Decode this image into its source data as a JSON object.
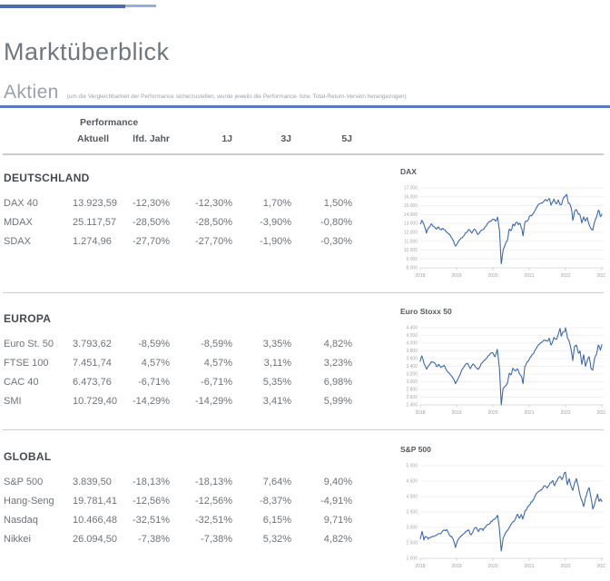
{
  "header": {
    "title": "Marktüberblick",
    "section_title": "Aktien",
    "section_note": "(um die Vergleichbarkeit der Performance sicherzustellen, wurde jeweils die Performance- bzw. Total-Return-Version herangezogen)"
  },
  "colors": {
    "accent_blue": "#5a79bd",
    "top_rule_dark": "#4d6cb3",
    "top_rule_light": "#9aaed9",
    "chart_line": "#3d68b1",
    "divider_gray": "#cccccc"
  },
  "table": {
    "group_label": "Performance",
    "columns": [
      "Aktuell",
      "lfd. Jahr",
      "1J",
      "3J",
      "5J"
    ]
  },
  "sections": [
    {
      "title": "DEUTSCHLAND",
      "rows": [
        {
          "name": "DAX 40",
          "values": [
            "13.923,59",
            "-12,30%",
            "-12,30%",
            "1,70%",
            "1,50%"
          ]
        },
        {
          "name": "MDAX",
          "values": [
            "25.117,57",
            "-28,50%",
            "-28,50%",
            "-3,90%",
            "-0,80%"
          ]
        },
        {
          "name": "SDAX",
          "values": [
            "1.274,96",
            "-27,70%",
            "-27,70%",
            "-1,90%",
            "-0,30%"
          ]
        }
      ]
    },
    {
      "title": "EUROPA",
      "rows": [
        {
          "name": "Euro St. 50",
          "values": [
            "3.793,62",
            "-8,59%",
            "-8,59%",
            "3,35%",
            "4,82%"
          ]
        },
        {
          "name": "FTSE 100",
          "values": [
            "7.451,74",
            "4,57%",
            "4,57%",
            "3,11%",
            "3,23%"
          ]
        },
        {
          "name": "CAC 40",
          "values": [
            "6.473,76",
            "-6,71%",
            "-6,71%",
            "5,35%",
            "6,98%"
          ]
        },
        {
          "name": "SMI",
          "values": [
            "10.729,40",
            "-14,29%",
            "-14,29%",
            "3,41%",
            "5,99%"
          ]
        }
      ]
    },
    {
      "title": "GLOBAL",
      "rows": [
        {
          "name": "S&P 500",
          "values": [
            "3.839,50",
            "-18,13%",
            "-18,13%",
            "7,64%",
            "9,40%"
          ]
        },
        {
          "name": "Hang-Seng",
          "values": [
            "19.781,41",
            "-12,56%",
            "-12,56%",
            "-8,37%",
            "-4,91%"
          ]
        },
        {
          "name": "Nasdaq",
          "values": [
            "10.466,48",
            "-32,51%",
            "-32,51%",
            "6,15%",
            "9,71%"
          ]
        },
        {
          "name": "Nikkei",
          "values": [
            "26.094,50",
            "-7,38%",
            "-7,38%",
            "5,32%",
            "4,82%"
          ]
        }
      ]
    }
  ],
  "chart_data": [
    {
      "type": "line",
      "title": "DAX",
      "ylim": [
        8000,
        17000
      ],
      "ytick_step": 1000,
      "xticks": [
        2018,
        2019,
        2020,
        2021,
        2022,
        2023
      ],
      "grid": true,
      "legend": "none",
      "line_color": "#3d68b1",
      "points": [
        [
          2018.0,
          12950
        ],
        [
          2018.04,
          13340
        ],
        [
          2018.1,
          12880
        ],
        [
          2018.17,
          11900
        ],
        [
          2018.22,
          12450
        ],
        [
          2018.3,
          12950
        ],
        [
          2018.38,
          12650
        ],
        [
          2018.45,
          12350
        ],
        [
          2018.5,
          12600
        ],
        [
          2018.55,
          12300
        ],
        [
          2018.62,
          12450
        ],
        [
          2018.7,
          12150
        ],
        [
          2018.78,
          11850
        ],
        [
          2018.85,
          11450
        ],
        [
          2018.9,
          11150
        ],
        [
          2018.97,
          10450
        ],
        [
          2019.05,
          10950
        ],
        [
          2019.12,
          11350
        ],
        [
          2019.2,
          11600
        ],
        [
          2019.28,
          12000
        ],
        [
          2019.35,
          12300
        ],
        [
          2019.42,
          11900
        ],
        [
          2019.5,
          12350
        ],
        [
          2019.58,
          11750
        ],
        [
          2019.65,
          12100
        ],
        [
          2019.72,
          12300
        ],
        [
          2019.8,
          12650
        ],
        [
          2019.88,
          13150
        ],
        [
          2019.95,
          13250
        ],
        [
          2020.02,
          13450
        ],
        [
          2020.08,
          13250
        ],
        [
          2020.13,
          13700
        ],
        [
          2020.18,
          12300
        ],
        [
          2020.23,
          8450
        ],
        [
          2020.28,
          9950
        ],
        [
          2020.33,
          10500
        ],
        [
          2020.4,
          11100
        ],
        [
          2020.45,
          12350
        ],
        [
          2020.5,
          12200
        ],
        [
          2020.55,
          12900
        ],
        [
          2020.6,
          12750
        ],
        [
          2020.65,
          13150
        ],
        [
          2020.7,
          12850
        ],
        [
          2020.75,
          13000
        ],
        [
          2020.8,
          12350
        ],
        [
          2020.83,
          11600
        ],
        [
          2020.88,
          13100
        ],
        [
          2020.95,
          13300
        ],
        [
          2021.0,
          13750
        ],
        [
          2021.05,
          13900
        ],
        [
          2021.1,
          14050
        ],
        [
          2021.18,
          14600
        ],
        [
          2021.25,
          15150
        ],
        [
          2021.32,
          15250
        ],
        [
          2021.4,
          15450
        ],
        [
          2021.45,
          15700
        ],
        [
          2021.5,
          15550
        ],
        [
          2021.55,
          15800
        ],
        [
          2021.6,
          15050
        ],
        [
          2021.68,
          15750
        ],
        [
          2021.75,
          15200
        ],
        [
          2021.8,
          15650
        ],
        [
          2021.85,
          15100
        ],
        [
          2021.9,
          15250
        ],
        [
          2021.95,
          15900
        ],
        [
          2022.0,
          16100
        ],
        [
          2022.03,
          16270
        ],
        [
          2022.08,
          15250
        ],
        [
          2022.13,
          15100
        ],
        [
          2022.17,
          14450
        ],
        [
          2022.2,
          13350
        ],
        [
          2022.25,
          14350
        ],
        [
          2022.3,
          14550
        ],
        [
          2022.35,
          14050
        ],
        [
          2022.4,
          13900
        ],
        [
          2022.45,
          13050
        ],
        [
          2022.5,
          13750
        ],
        [
          2022.55,
          13250
        ],
        [
          2022.6,
          13650
        ],
        [
          2022.65,
          12850
        ],
        [
          2022.7,
          12450
        ],
        [
          2022.75,
          12250
        ],
        [
          2022.8,
          13150
        ],
        [
          2022.85,
          13650
        ],
        [
          2022.9,
          14450
        ],
        [
          2022.93,
          14350
        ],
        [
          2022.96,
          13750
        ],
        [
          2023.0,
          14050
        ]
      ]
    },
    {
      "type": "line",
      "title": "Euro Stoxx 50",
      "ylim": [
        2400,
        4400
      ],
      "ytick_step": 200,
      "xticks": [
        2018,
        2019,
        2020,
        2021,
        2022,
        2023
      ],
      "grid": true,
      "legend": "none",
      "line_color": "#3d68b1",
      "points": [
        [
          2018.0,
          3530
        ],
        [
          2018.04,
          3670
        ],
        [
          2018.1,
          3480
        ],
        [
          2018.17,
          3330
        ],
        [
          2018.25,
          3440
        ],
        [
          2018.3,
          3520
        ],
        [
          2018.4,
          3480
        ],
        [
          2018.45,
          3390
        ],
        [
          2018.5,
          3450
        ],
        [
          2018.57,
          3370
        ],
        [
          2018.65,
          3430
        ],
        [
          2018.72,
          3310
        ],
        [
          2018.8,
          3220
        ],
        [
          2018.87,
          3140
        ],
        [
          2018.93,
          3050
        ],
        [
          2018.97,
          2950
        ],
        [
          2019.05,
          3100
        ],
        [
          2019.12,
          3250
        ],
        [
          2019.2,
          3380
        ],
        [
          2019.3,
          3480
        ],
        [
          2019.38,
          3340
        ],
        [
          2019.45,
          3460
        ],
        [
          2019.52,
          3380
        ],
        [
          2019.6,
          3320
        ],
        [
          2019.68,
          3480
        ],
        [
          2019.77,
          3560
        ],
        [
          2019.85,
          3640
        ],
        [
          2019.92,
          3720
        ],
        [
          2020.0,
          3750
        ],
        [
          2020.06,
          3650
        ],
        [
          2020.12,
          3840
        ],
        [
          2020.18,
          3350
        ],
        [
          2020.23,
          2400
        ],
        [
          2020.28,
          2820
        ],
        [
          2020.33,
          2880
        ],
        [
          2020.4,
          2960
        ],
        [
          2020.45,
          3220
        ],
        [
          2020.5,
          3180
        ],
        [
          2020.55,
          3350
        ],
        [
          2020.62,
          3280
        ],
        [
          2020.68,
          3330
        ],
        [
          2020.75,
          3180
        ],
        [
          2020.8,
          3100
        ],
        [
          2020.83,
          2950
        ],
        [
          2020.88,
          3400
        ],
        [
          2020.95,
          3520
        ],
        [
          2021.0,
          3580
        ],
        [
          2021.05,
          3650
        ],
        [
          2021.12,
          3730
        ],
        [
          2021.2,
          3870
        ],
        [
          2021.28,
          3970
        ],
        [
          2021.35,
          4020
        ],
        [
          2021.42,
          4080
        ],
        [
          2021.5,
          4050
        ],
        [
          2021.55,
          4130
        ],
        [
          2021.6,
          3950
        ],
        [
          2021.68,
          4150
        ],
        [
          2021.75,
          4100
        ],
        [
          2021.8,
          4230
        ],
        [
          2021.85,
          4380
        ],
        [
          2021.88,
          4180
        ],
        [
          2021.92,
          4280
        ],
        [
          2021.97,
          4300
        ],
        [
          2022.0,
          4400
        ],
        [
          2022.05,
          4150
        ],
        [
          2022.1,
          4050
        ],
        [
          2022.15,
          3850
        ],
        [
          2022.2,
          3550
        ],
        [
          2022.25,
          3920
        ],
        [
          2022.3,
          3950
        ],
        [
          2022.35,
          3750
        ],
        [
          2022.4,
          3800
        ],
        [
          2022.45,
          3450
        ],
        [
          2022.5,
          3700
        ],
        [
          2022.55,
          3400
        ],
        [
          2022.6,
          3550
        ],
        [
          2022.65,
          3650
        ],
        [
          2022.7,
          3350
        ],
        [
          2022.75,
          3300
        ],
        [
          2022.8,
          3600
        ],
        [
          2022.85,
          3700
        ],
        [
          2022.9,
          3950
        ],
        [
          2022.93,
          3900
        ],
        [
          2022.96,
          3820
        ],
        [
          2023.0,
          3960
        ]
      ]
    },
    {
      "type": "line",
      "title": "S&P 500",
      "ylim": [
        2000,
        5000
      ],
      "ytick_step": 500,
      "xticks": [
        2018,
        2019,
        2020,
        2021,
        2022,
        2023
      ],
      "grid": true,
      "legend": "none",
      "line_color": "#3d68b1",
      "points": [
        [
          2018.0,
          2630
        ],
        [
          2018.05,
          2870
        ],
        [
          2018.1,
          2590
        ],
        [
          2018.15,
          2700
        ],
        [
          2018.22,
          2620
        ],
        [
          2018.3,
          2680
        ],
        [
          2018.4,
          2730
        ],
        [
          2018.5,
          2790
        ],
        [
          2018.6,
          2860
        ],
        [
          2018.68,
          2900
        ],
        [
          2018.73,
          2930
        ],
        [
          2018.8,
          2760
        ],
        [
          2018.85,
          2720
        ],
        [
          2018.9,
          2630
        ],
        [
          2018.97,
          2350
        ],
        [
          2019.05,
          2620
        ],
        [
          2019.12,
          2720
        ],
        [
          2019.2,
          2800
        ],
        [
          2019.28,
          2880
        ],
        [
          2019.33,
          2920
        ],
        [
          2019.4,
          2760
        ],
        [
          2019.48,
          2940
        ],
        [
          2019.55,
          2990
        ],
        [
          2019.6,
          2870
        ],
        [
          2019.65,
          2960
        ],
        [
          2019.73,
          2900
        ],
        [
          2019.8,
          3010
        ],
        [
          2019.88,
          3100
        ],
        [
          2019.95,
          3200
        ],
        [
          2020.0,
          3240
        ],
        [
          2020.08,
          3300
        ],
        [
          2020.13,
          3390
        ],
        [
          2020.18,
          2950
        ],
        [
          2020.23,
          2240
        ],
        [
          2020.28,
          2630
        ],
        [
          2020.35,
          2830
        ],
        [
          2020.42,
          2930
        ],
        [
          2020.48,
          3060
        ],
        [
          2020.55,
          3180
        ],
        [
          2020.6,
          3230
        ],
        [
          2020.68,
          3430
        ],
        [
          2020.73,
          3300
        ],
        [
          2020.78,
          3420
        ],
        [
          2020.82,
          3270
        ],
        [
          2020.88,
          3520
        ],
        [
          2020.95,
          3650
        ],
        [
          2021.0,
          3720
        ],
        [
          2021.05,
          3830
        ],
        [
          2021.12,
          3900
        ],
        [
          2021.2,
          4100
        ],
        [
          2021.28,
          4180
        ],
        [
          2021.35,
          4230
        ],
        [
          2021.42,
          4350
        ],
        [
          2021.5,
          4280
        ],
        [
          2021.58,
          4450
        ],
        [
          2021.65,
          4520
        ],
        [
          2021.7,
          4350
        ],
        [
          2021.78,
          4550
        ],
        [
          2021.85,
          4650
        ],
        [
          2021.9,
          4550
        ],
        [
          2021.95,
          4710
        ],
        [
          2022.0,
          4790
        ],
        [
          2022.05,
          4380
        ],
        [
          2022.1,
          4580
        ],
        [
          2022.15,
          4350
        ],
        [
          2022.2,
          4200
        ],
        [
          2022.25,
          4450
        ],
        [
          2022.3,
          4580
        ],
        [
          2022.35,
          4350
        ],
        [
          2022.4,
          4050
        ],
        [
          2022.45,
          3880
        ],
        [
          2022.5,
          3680
        ],
        [
          2022.55,
          3950
        ],
        [
          2022.6,
          4150
        ],
        [
          2022.65,
          4290
        ],
        [
          2022.7,
          3970
        ],
        [
          2022.75,
          3600
        ],
        [
          2022.8,
          3750
        ],
        [
          2022.85,
          3950
        ],
        [
          2022.88,
          4080
        ],
        [
          2022.92,
          3850
        ],
        [
          2022.96,
          3920
        ],
        [
          2023.0,
          3840
        ]
      ]
    }
  ]
}
